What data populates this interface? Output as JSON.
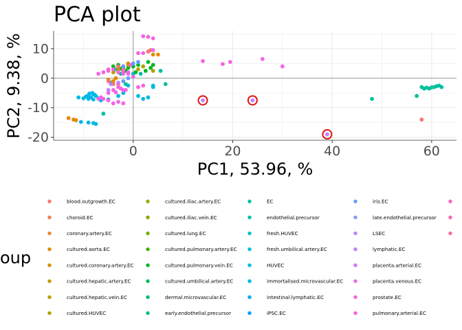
{
  "chart_data": {
    "type": "scatter",
    "title": "PCA plot",
    "xlabel": "PC1, 53.96, %",
    "ylabel": "PC2, 9.38, %",
    "xlim": [
      -16,
      65
    ],
    "ylim": [
      -21,
      16
    ],
    "xticks": [
      0,
      20,
      40,
      60
    ],
    "yticks": [
      -20,
      -10,
      0,
      10
    ],
    "xtick_labels": [
      "0",
      "20",
      "40",
      "60"
    ],
    "ytick_labels": [
      "-20",
      "-10",
      "0",
      "10"
    ],
    "grid": true,
    "reference_lines": {
      "x": 0,
      "y": 0
    },
    "legend_title_visible": "oup",
    "legend_placement": "bottom",
    "legend": [
      {
        "name": "blood.outgrowth.EC",
        "color": "#F8766D"
      },
      {
        "name": "choroid.EC",
        "color": "#F27D53"
      },
      {
        "name": "coronary.artery.EC",
        "color": "#EA8331"
      },
      {
        "name": "cultured.aorta.EC",
        "color": "#E18A00"
      },
      {
        "name": "cultured.coronary.artery.EC",
        "color": "#D69100"
      },
      {
        "name": "cultured.hepatic.artery.EC",
        "color": "#C99800"
      },
      {
        "name": "cultured.hepatic.vein.EC",
        "color": "#BB9E00"
      },
      {
        "name": "cultured.HUVEC",
        "color": "#ABA300"
      },
      {
        "name": "cultured.iliac.artery.EC",
        "color": "#99A800"
      },
      {
        "name": "cultured.iliac.vein.EC",
        "color": "#86AC00"
      },
      {
        "name": "cultured.lung.EC",
        "color": "#6BB100"
      },
      {
        "name": "cultured.pulmonary.artery.EC",
        "color": "#3DB500"
      },
      {
        "name": "cultured.pulmonary.vein.EC",
        "color": "#00B81E"
      },
      {
        "name": "cultured.umbilical.artery.EC",
        "color": "#00BB4E"
      },
      {
        "name": "dermal.microvascular.EC",
        "color": "#00BD6C"
      },
      {
        "name": "early.endothelial.precursor",
        "color": "#00BF86"
      },
      {
        "name": "EC",
        "color": "#00C09D"
      },
      {
        "name": "endothelial.precursor",
        "color": "#00C1B2"
      },
      {
        "name": "fresh.HUVEC",
        "color": "#00C0C5"
      },
      {
        "name": "fresh.umbilical.artery.EC",
        "color": "#00BDD6"
      },
      {
        "name": "HUVEC",
        "color": "#00B8E5"
      },
      {
        "name": "immortalised.microvascular.EC",
        "color": "#00B2F2"
      },
      {
        "name": "intestinal.lymphatic.EC",
        "color": "#00AAFC"
      },
      {
        "name": "iPSC.EC",
        "color": "#00A1FF"
      },
      {
        "name": "iris.EC",
        "color": "#619CFF"
      },
      {
        "name": "late.endothelial.precursor",
        "color": "#8F91FF"
      },
      {
        "name": "LSEC",
        "color": "#AE87FF"
      },
      {
        "name": "lymphatic.EC",
        "color": "#C77CFF"
      },
      {
        "name": "placenta.arterial.EC",
        "color": "#DA72FB"
      },
      {
        "name": "placenta.venous.EC",
        "color": "#E86BF3"
      },
      {
        "name": "prostate.EC",
        "color": "#F564E3"
      },
      {
        "name": "pulmonary.arterial.EC",
        "color": "#FC61D5"
      },
      {
        "name": "",
        "color": "#FF62BC"
      },
      {
        "name": "",
        "color": "#FF65AA"
      },
      {
        "name": "",
        "color": "#FF6C91"
      }
    ],
    "series": [
      {
        "color": "#00B8E5",
        "points": [
          [
            -11,
            -6.5
          ],
          [
            -10,
            -6.8
          ],
          [
            -9.5,
            -6.2
          ],
          [
            -9,
            -5.8
          ],
          [
            -8.5,
            -6.5
          ],
          [
            -8,
            -5.5
          ],
          [
            -7.5,
            -6
          ],
          [
            -9,
            -7
          ],
          [
            -8,
            -7.2
          ],
          [
            -7,
            -6.8
          ],
          [
            -8.8,
            -5.2
          ],
          [
            -8.2,
            -5
          ],
          [
            -7.8,
            -5.6
          ],
          [
            -10.5,
            -14.8
          ],
          [
            -9,
            -15
          ],
          [
            -8,
            -15.2
          ],
          [
            -7.5,
            -15.5
          ],
          [
            -5,
            -7.2
          ],
          [
            -6.5,
            -7.5
          ],
          [
            -2,
            -5
          ],
          [
            -3,
            -6
          ],
          [
            1,
            -6
          ],
          [
            2,
            -7
          ],
          [
            3,
            -6.5
          ],
          [
            4,
            -2.5
          ],
          [
            4,
            -3
          ],
          [
            -1,
            -2.5
          ],
          [
            0,
            1.5
          ]
        ]
      },
      {
        "color": "#00C09D",
        "points": [
          [
            48,
            -7
          ],
          [
            57,
            -6
          ],
          [
            58,
            -3
          ],
          [
            58.5,
            -3.5
          ],
          [
            59,
            -3.2
          ],
          [
            59.5,
            -3.5
          ],
          [
            60,
            -3.1
          ],
          [
            60.5,
            -3
          ],
          [
            61,
            -2.7
          ],
          [
            61.5,
            -2.5
          ],
          [
            62,
            -3
          ],
          [
            -6,
            -12
          ],
          [
            -4.5,
            -1.5
          ],
          [
            -3.5,
            3
          ],
          [
            -2.5,
            1.5
          ],
          [
            1.5,
            1.5
          ],
          [
            5.5,
            2.5
          ],
          [
            6.5,
            -2
          ],
          [
            -1.5,
            -2
          ]
        ]
      },
      {
        "color": "#00B81E",
        "points": [
          [
            -4,
            4
          ],
          [
            -3,
            4.5
          ],
          [
            -2,
            4
          ],
          [
            -1,
            3.5
          ],
          [
            -2.5,
            3.2
          ],
          [
            0,
            4
          ],
          [
            1,
            4.5
          ],
          [
            3,
            5.5
          ],
          [
            4,
            4.5
          ],
          [
            3.5,
            3.5
          ],
          [
            2.5,
            2.5
          ],
          [
            -1.5,
            2.5
          ],
          [
            0.5,
            2
          ]
        ]
      },
      {
        "color": "#ABA300",
        "points": [
          [
            -3,
            3
          ],
          [
            -2,
            3.5
          ],
          [
            -1,
            4.5
          ],
          [
            1,
            3
          ],
          [
            2,
            4
          ],
          [
            4,
            2.5
          ],
          [
            -4,
            2
          ]
        ]
      },
      {
        "color": "#E18A00",
        "points": [
          [
            -13,
            -13.5
          ],
          [
            -12,
            -14
          ],
          [
            -11.5,
            -14.2
          ],
          [
            -4,
            -1
          ],
          [
            -3.5,
            0
          ],
          [
            -5,
            -0.5
          ],
          [
            4,
            8
          ],
          [
            5,
            8
          ],
          [
            -1,
            5
          ]
        ]
      },
      {
        "color": "#F8766D",
        "points": [
          [
            58,
            -14
          ],
          [
            3,
            9
          ],
          [
            3.5,
            9.5
          ],
          [
            -3,
            4
          ],
          [
            -2,
            3
          ],
          [
            -5,
            -1
          ],
          [
            -4,
            -2
          ],
          [
            -3,
            -2
          ]
        ]
      },
      {
        "color": "#F564E3",
        "points": [
          [
            14,
            5.8
          ],
          [
            18,
            4.8
          ],
          [
            19.5,
            5.5
          ],
          [
            26,
            6.5
          ],
          [
            30,
            4
          ],
          [
            2,
            14.2
          ],
          [
            3,
            14
          ],
          [
            4,
            13.5
          ],
          [
            1,
            8.5
          ],
          [
            2,
            8.5
          ],
          [
            4,
            9.5
          ],
          [
            -7,
            1.5
          ],
          [
            -6,
            2
          ],
          [
            -5,
            2.5
          ],
          [
            -4,
            3
          ],
          [
            -3,
            2
          ],
          [
            -2,
            2.5
          ],
          [
            -1,
            2
          ],
          [
            -3,
            -3
          ],
          [
            -2,
            -4
          ],
          [
            -4,
            -4
          ],
          [
            -3.5,
            -4.8
          ],
          [
            -2.5,
            -3.5
          ],
          [
            -1.5,
            -4
          ],
          [
            -5,
            -5
          ],
          [
            -6,
            -7
          ],
          [
            -5,
            -7.5
          ],
          [
            -6.5,
            -6.5
          ],
          [
            -4,
            -8.5
          ],
          [
            -3,
            -8
          ],
          [
            -2,
            -8.5
          ],
          [
            -7,
            -7
          ],
          [
            1,
            -3
          ],
          [
            2,
            -2.5
          ],
          [
            -5,
            3
          ],
          [
            -1,
            1.5
          ],
          [
            0,
            0.5
          ],
          [
            -0.5,
            4.5
          ],
          [
            -2,
            1.5
          ]
        ]
      },
      {
        "color": "#C77CFF",
        "points": [
          [
            14,
            -7.5
          ],
          [
            24,
            -7.5
          ],
          [
            39,
            -19
          ],
          [
            -5,
            -4
          ],
          [
            -4.5,
            -2
          ],
          [
            -3,
            -1.5
          ]
        ]
      },
      {
        "color": "#619CFF",
        "points": [
          [
            -2,
            4
          ],
          [
            0,
            5
          ],
          [
            1,
            5.5
          ],
          [
            -1,
            0
          ],
          [
            -2,
            -1
          ]
        ]
      }
    ],
    "highlighted_points": [
      [
        14,
        -7.5
      ],
      [
        24,
        -7.5
      ],
      [
        39,
        -19
      ]
    ]
  }
}
